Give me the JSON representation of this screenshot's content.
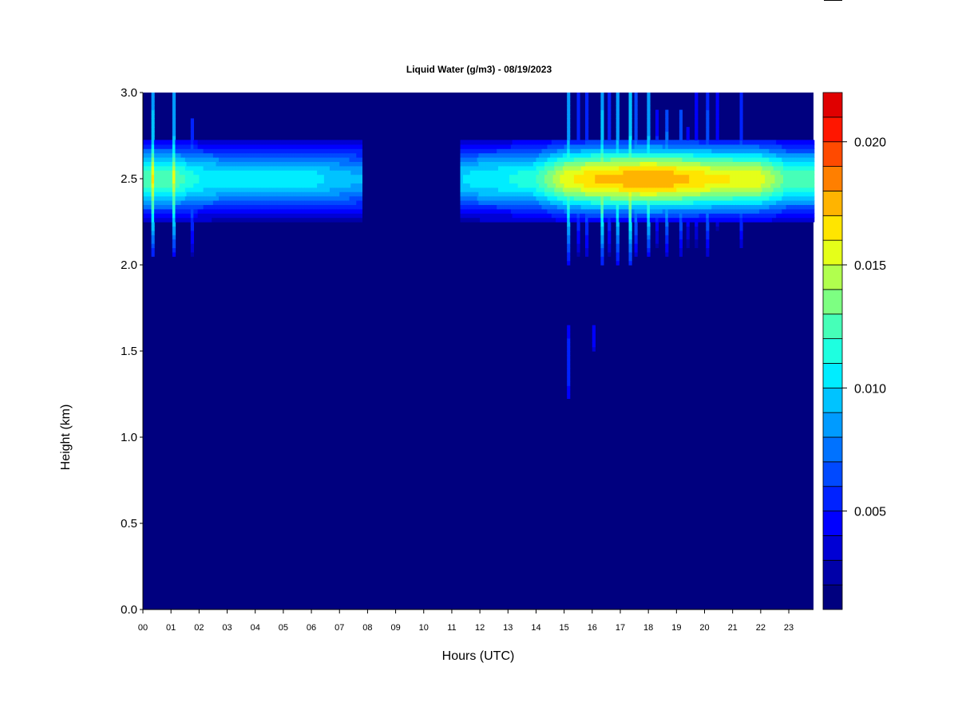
{
  "chart_data": {
    "type": "heatmap",
    "title": "Liquid Water (g/m3) - 08/19/2023",
    "xlabel": "Hours (UTC)",
    "ylabel": "Height (km)",
    "xlim": [
      0,
      23.88
    ],
    "ylim": [
      0,
      3.0
    ],
    "x_ticks": [
      "00",
      "01",
      "02",
      "03",
      "04",
      "05",
      "06",
      "07",
      "08",
      "09",
      "10",
      "11",
      "12",
      "13",
      "14",
      "15",
      "16",
      "17",
      "18",
      "19",
      "20",
      "21",
      "22",
      "23"
    ],
    "y_ticks": [
      "0.0",
      "0.5",
      "1.0",
      "1.5",
      "2.0",
      "2.5",
      "3.0"
    ],
    "colorbar": {
      "levels_min": 0.001,
      "levels_step": 0.001,
      "colors": [
        "#00007F",
        "#0000A8",
        "#0000D4",
        "#0000FF",
        "#0022FF",
        "#0049FF",
        "#0072FF",
        "#009BFF",
        "#00C3FF",
        "#00EDFF",
        "#1EFFE0",
        "#46FFB8",
        "#7DFF82",
        "#B1FF4E",
        "#E5FF19",
        "#FFE500",
        "#FFB400",
        "#FF7F00",
        "#FF4A00",
        "#FF1600",
        "#E00000",
        "#B00000",
        "#7F0000"
      ],
      "ticks": [
        {
          "value": 0.005,
          "label": "0.005"
        },
        {
          "value": 0.01,
          "label": "0.010"
        },
        {
          "value": 0.015,
          "label": "0.015"
        },
        {
          "value": 0.02,
          "label": "0.020"
        }
      ],
      "range": [
        0.001,
        0.022
      ]
    },
    "cloud_layer": {
      "center_km": 2.5,
      "bottom_km": 2.26,
      "top_km": 2.72,
      "gaps_hours": [
        [
          7.8,
          11.3
        ]
      ],
      "peak_by_hour": [
        0.013,
        0.013,
        0.011,
        0.0105,
        0.0105,
        0.0105,
        0.0105,
        0.0095,
        0.009,
        0,
        0,
        0.0095,
        0.0108,
        0.011,
        0.012,
        0.0155,
        0.017,
        0.0175,
        0.018,
        0.0175,
        0.0165,
        0.016,
        0.0155,
        0.0125
      ]
    },
    "spikes": [
      {
        "hour": 0.35,
        "peak": 0.021,
        "top_km": 3.0,
        "bottom_km": 2.05
      },
      {
        "hour": 1.1,
        "peak": 0.02,
        "top_km": 3.0,
        "bottom_km": 2.05
      },
      {
        "hour": 1.75,
        "peak": 0.012,
        "top_km": 2.85,
        "bottom_km": 2.05
      },
      {
        "hour": 15.15,
        "peak": 0.019,
        "top_km": 3.0,
        "bottom_km": 2.0
      },
      {
        "hour": 15.5,
        "peak": 0.012,
        "top_km": 3.0,
        "bottom_km": 2.05
      },
      {
        "hour": 15.8,
        "peak": 0.013,
        "top_km": 3.0,
        "bottom_km": 2.05
      },
      {
        "hour": 16.35,
        "peak": 0.021,
        "top_km": 3.0,
        "bottom_km": 2.0
      },
      {
        "hour": 16.6,
        "peak": 0.012,
        "top_km": 3.0,
        "bottom_km": 2.05
      },
      {
        "hour": 16.9,
        "peak": 0.019,
        "top_km": 3.0,
        "bottom_km": 2.0
      },
      {
        "hour": 17.35,
        "peak": 0.022,
        "top_km": 3.0,
        "bottom_km": 2.0
      },
      {
        "hour": 17.55,
        "peak": 0.015,
        "top_km": 3.0,
        "bottom_km": 2.05
      },
      {
        "hour": 18.0,
        "peak": 0.02,
        "top_km": 3.0,
        "bottom_km": 2.05
      },
      {
        "hour": 18.3,
        "peak": 0.011,
        "top_km": 2.9,
        "bottom_km": 2.1
      },
      {
        "hour": 18.65,
        "peak": 0.016,
        "top_km": 2.9,
        "bottom_km": 2.05
      },
      {
        "hour": 19.15,
        "peak": 0.014,
        "top_km": 2.9,
        "bottom_km": 2.05
      },
      {
        "hour": 19.4,
        "peak": 0.01,
        "top_km": 2.8,
        "bottom_km": 2.1
      },
      {
        "hour": 19.7,
        "peak": 0.01,
        "top_km": 3.0,
        "bottom_km": 2.1
      },
      {
        "hour": 20.1,
        "peak": 0.014,
        "top_km": 3.0,
        "bottom_km": 2.05
      },
      {
        "hour": 20.45,
        "peak": 0.01,
        "top_km": 3.0,
        "bottom_km": 2.2
      },
      {
        "hour": 21.3,
        "peak": 0.013,
        "top_km": 3.0,
        "bottom_km": 2.1
      }
    ],
    "isolated_streaks": [
      {
        "hour": 15.15,
        "peak": 0.007,
        "top_km": 1.65,
        "bottom_km": 1.22
      },
      {
        "hour": 16.05,
        "peak": 0.006,
        "top_km": 1.66,
        "bottom_km": 1.5
      }
    ]
  }
}
